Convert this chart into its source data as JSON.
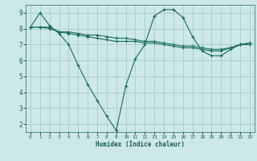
{
  "xlabel": "Humidex (Indice chaleur)",
  "background_color": "#cce8e8",
  "grid_color": "#aacccc",
  "line_color": "#1a6b5a",
  "xlim": [
    -0.5,
    23.5
  ],
  "ylim": [
    1.5,
    9.5
  ],
  "xticks": [
    0,
    1,
    2,
    3,
    4,
    5,
    6,
    7,
    8,
    9,
    10,
    11,
    12,
    13,
    14,
    15,
    16,
    17,
    18,
    19,
    20,
    21,
    22,
    23
  ],
  "yticks": [
    2,
    3,
    4,
    5,
    6,
    7,
    8,
    9
  ],
  "series1_x": [
    0,
    1,
    2,
    3,
    4,
    5,
    6,
    7,
    8,
    9,
    10,
    11,
    12,
    13,
    14,
    15,
    16,
    17,
    18,
    19,
    20,
    21,
    22,
    23
  ],
  "series1_y": [
    8.1,
    9.0,
    8.2,
    7.7,
    7.0,
    5.7,
    4.5,
    3.5,
    2.5,
    1.6,
    4.4,
    6.1,
    7.0,
    8.8,
    9.2,
    9.2,
    8.7,
    7.5,
    6.6,
    6.3,
    6.3,
    6.7,
    7.0,
    7.0
  ],
  "series2_x": [
    0,
    1,
    2,
    3,
    4,
    5,
    6,
    7,
    8,
    9,
    10,
    11,
    12,
    13,
    14,
    15,
    16,
    17,
    18,
    19,
    20,
    21,
    22,
    23
  ],
  "series2_y": [
    8.1,
    8.1,
    8.1,
    7.8,
    7.8,
    7.7,
    7.6,
    7.6,
    7.5,
    7.4,
    7.4,
    7.3,
    7.2,
    7.2,
    7.1,
    7.0,
    6.9,
    6.9,
    6.8,
    6.7,
    6.7,
    6.8,
    7.0,
    7.1
  ],
  "series3_x": [
    0,
    1,
    2,
    3,
    4,
    5,
    6,
    7,
    8,
    9,
    10,
    11,
    12,
    13,
    14,
    15,
    16,
    17,
    18,
    19,
    20,
    21,
    22,
    23
  ],
  "series3_y": [
    8.1,
    8.1,
    8.0,
    7.8,
    7.7,
    7.6,
    7.5,
    7.4,
    7.3,
    7.2,
    7.2,
    7.2,
    7.1,
    7.1,
    7.0,
    6.9,
    6.8,
    6.8,
    6.7,
    6.6,
    6.6,
    6.8,
    7.0,
    7.1
  ]
}
